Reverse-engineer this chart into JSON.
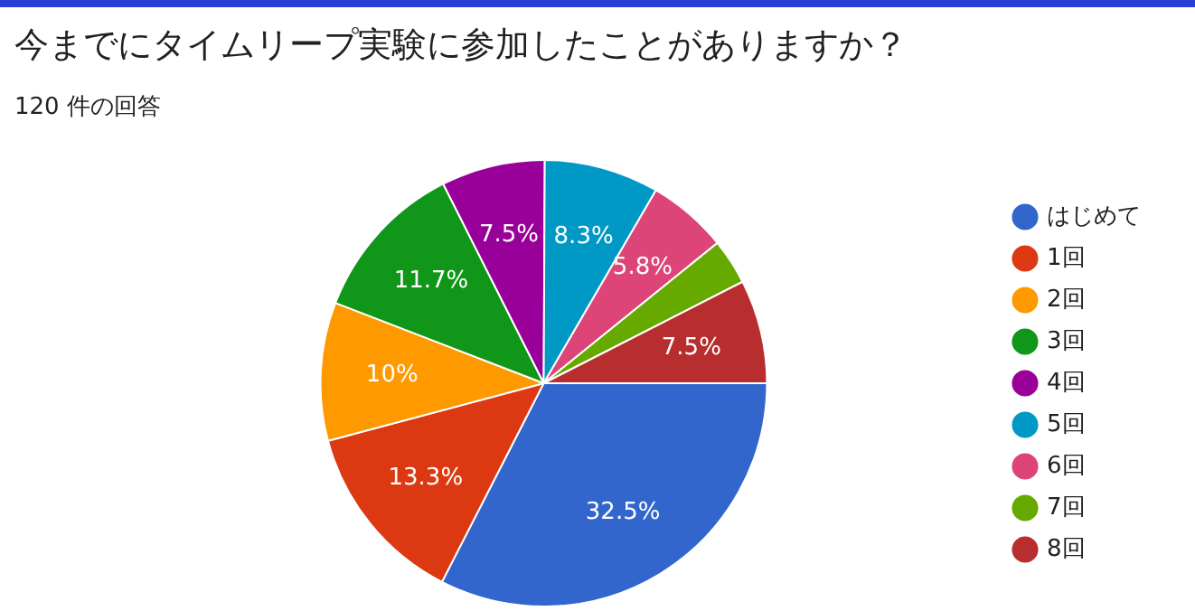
{
  "chart_data": {
    "type": "pie",
    "title": "今までにタイムリープ実験に参加したことがありますか？",
    "subtitle": "120 件の回答",
    "categories": [
      "はじめて",
      "1回",
      "2回",
      "3回",
      "4回",
      "5回",
      "6回",
      "7回",
      "8回"
    ],
    "values": [
      32.5,
      13.3,
      10,
      11.7,
      7.5,
      8.3,
      5.8,
      3.3,
      7.5
    ],
    "colors": [
      "#3366cc",
      "#dc3912",
      "#ff9900",
      "#109618",
      "#990099",
      "#0099c6",
      "#dd4477",
      "#66aa00",
      "#b82e2e"
    ],
    "value_labels": [
      "32.5%",
      "13.3%",
      "10%",
      "11.7%",
      "7.5%",
      "8.3%",
      "5.8%",
      null,
      "7.5%"
    ],
    "legend": "right"
  }
}
